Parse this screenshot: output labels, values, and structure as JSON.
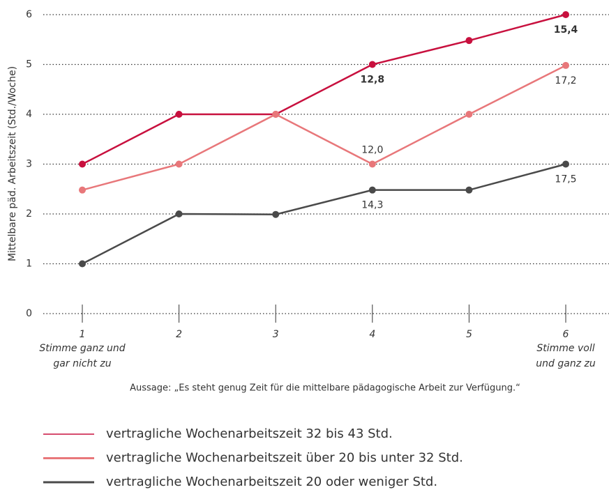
{
  "chart_data": {
    "type": "line",
    "ylabel": "Mittelbare päd. Arbeitszeit (Std./Woche)",
    "xlabel": "Aussage: „Es steht genug Zeit für die mittelbare pädagogische Arbeit zur Verfügung.“",
    "categories": [
      "1",
      "2",
      "3",
      "4",
      "5",
      "6"
    ],
    "x_end_labels": [
      [
        "Stimme ganz und",
        "gar nicht zu"
      ],
      [
        "Stimme voll",
        "und ganz zu"
      ]
    ],
    "ylim": [
      0,
      6
    ],
    "yticks": [
      0,
      1,
      2,
      3,
      4,
      5,
      6
    ],
    "grid": true,
    "series": [
      {
        "name": "vertragliche Wochenarbeitszeit 32 bis 43 Std.",
        "color": "#c8103e",
        "values": [
          3,
          4,
          4,
          5,
          5.48,
          6
        ],
        "annotations": [
          "12,8",
          "15,4"
        ]
      },
      {
        "name": "vertragliche Wochenarbeitszeit über 20 bis unter 32 Std.",
        "color": "#e8777a",
        "values": [
          2.48,
          3,
          4,
          3,
          4,
          4.98
        ],
        "annotations": [
          "12,0",
          "17,2"
        ]
      },
      {
        "name": "vertragliche Wochenarbeitszeit 20 oder weniger Std.",
        "color": "#4a4a4a",
        "values": [
          1,
          2,
          1.99,
          2.48,
          2.48,
          3
        ],
        "annotations": [
          "14,3",
          "17,5"
        ]
      }
    ]
  }
}
